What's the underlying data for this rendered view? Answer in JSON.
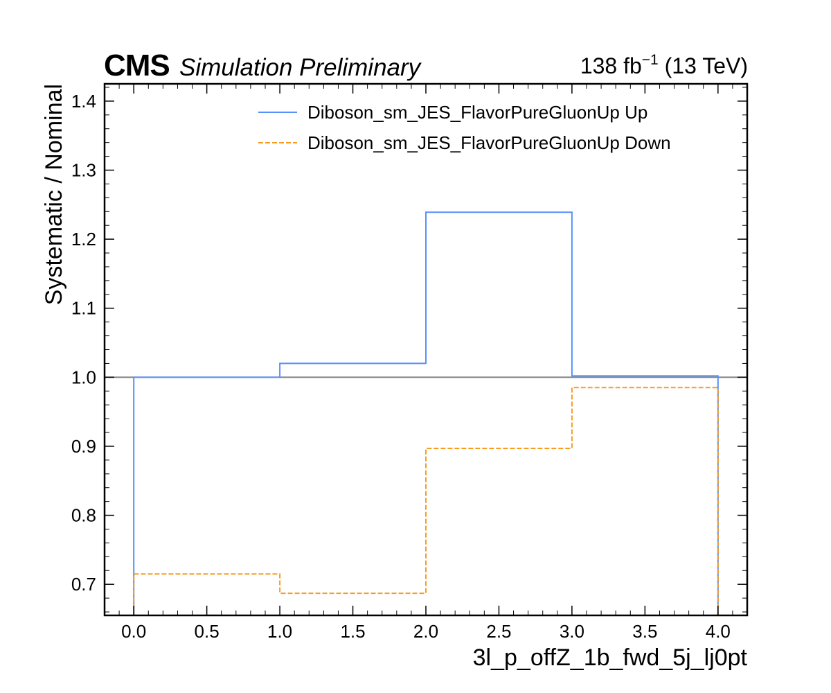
{
  "header": {
    "experiment": "CMS",
    "status": "Simulation Preliminary",
    "lumi_value": "138 fb",
    "lumi_exponent": "−1",
    "energy": " (13 TeV)"
  },
  "chart_data": {
    "type": "line",
    "drawstyle": "steps",
    "xlabel": "3l_p_offZ_1b_fwd_5j_lj0pt",
    "ylabel": "Systematic / Nominal",
    "xlim": [
      -0.2,
      4.2
    ],
    "ylim": [
      0.655,
      1.425
    ],
    "bin_edges": [
      0.0,
      1.0,
      2.0,
      3.0,
      4.0
    ],
    "xticks": [
      "0.0",
      "0.5",
      "1.0",
      "1.5",
      "2.0",
      "2.5",
      "3.0",
      "3.5",
      "4.0"
    ],
    "yticks": [
      "0.7",
      "0.8",
      "0.9",
      "1.0",
      "1.1",
      "1.2",
      "1.3",
      "1.4"
    ],
    "reference_line": 1.0,
    "legend_position": "upper right",
    "series": [
      {
        "name": "Diboson_sm_JES_FlavorPureGluonUp Up",
        "color": "#5790fc",
        "linestyle": "solid",
        "values": [
          1.0,
          1.02,
          1.239,
          1.002
        ]
      },
      {
        "name": "Diboson_sm_JES_FlavorPureGluonUp Down",
        "color": "#f89c20",
        "linestyle": "dashed",
        "values": [
          0.715,
          0.687,
          0.897,
          0.985
        ]
      }
    ],
    "reference_color": "#808080"
  }
}
